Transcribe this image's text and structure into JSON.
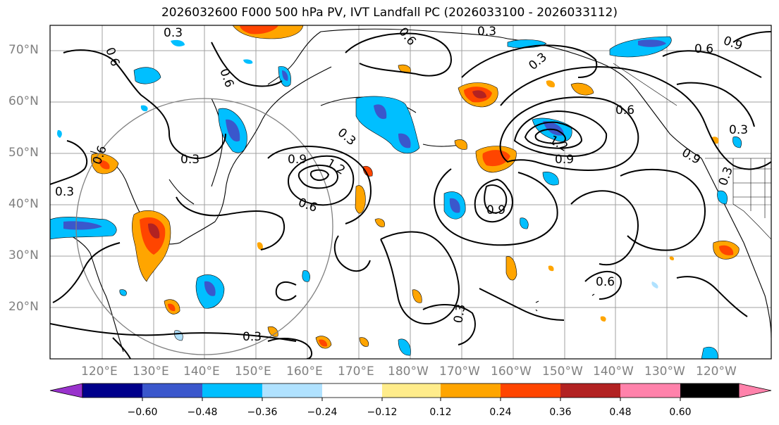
{
  "title": "2026032600 F000 500 hPa PV, IVT Landfall PC (2026033100 - 2026033112)",
  "lat_labels": [
    "70°N",
    "60°N",
    "50°N",
    "40°N",
    "30°N",
    "20°N"
  ],
  "lon_labels": [
    "120°E",
    "130°E",
    "140°E",
    "150°E",
    "160°E",
    "170°E",
    "180°W",
    "170°W",
    "160°W",
    "150°W",
    "140°W",
    "130°W",
    "120°W"
  ],
  "colorbar": {
    "colors": [
      "#9932cc",
      "#00008b",
      "#3a57cc",
      "#00bfff",
      "#b0e2ff",
      "#ffffff",
      "#ffec8b",
      "#ffa500",
      "#ff4500",
      "#b22222",
      "#ff82ab"
    ],
    "ticks": [
      "−0.60",
      "−0.48",
      "−0.36",
      "−0.24",
      "−0.12",
      "0.12",
      "0.24",
      "0.36",
      "0.48",
      "0.60"
    ]
  },
  "contour_labels": [
    "0.3",
    "0.6",
    "0.9",
    "1.2"
  ]
}
